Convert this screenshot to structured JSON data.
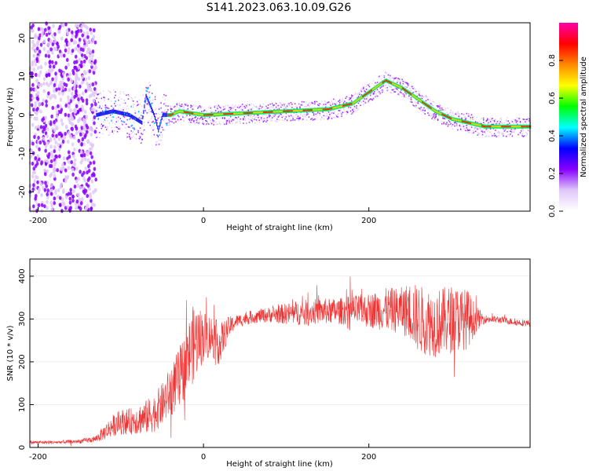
{
  "chart_data": [
    {
      "type": "heatmap",
      "title": "S141.2023.063.10.09.G26",
      "xlabel": "Height of straight line (km)",
      "ylabel": "Frequency (Hz)",
      "xlim": [
        -210,
        395
      ],
      "ylim": [
        -25,
        24
      ],
      "xticks": [
        -200,
        0,
        200
      ],
      "yticks": [
        -20,
        -10,
        0,
        10,
        20
      ],
      "colorbar": {
        "label": "Normalized spectral amplitude",
        "range": [
          0,
          1
        ],
        "ticks": [
          0.0,
          0.2,
          0.4,
          0.6,
          0.8
        ],
        "colors": [
          "#ffffff",
          "#e0c8f8",
          "#8800ff",
          "#0000ff",
          "#00ffff",
          "#00ff00",
          "#ffff00",
          "#ff8800",
          "#ff0000",
          "#ff00aa"
        ]
      },
      "ridge": {
        "x": [
          -130,
          -110,
          -90,
          -75,
          -70,
          -60,
          -55,
          -50,
          -40,
          -30,
          0,
          50,
          100,
          150,
          180,
          200,
          220,
          240,
          260,
          280,
          300,
          320,
          340,
          360,
          395
        ],
        "y": [
          0,
          1,
          0,
          -2,
          5,
          0,
          -4,
          0,
          0,
          1,
          0,
          0.5,
          1,
          1.5,
          3,
          6,
          9,
          7,
          4,
          1,
          -1,
          -2,
          -3,
          -3,
          -3
        ]
      },
      "noise_region": [
        -210,
        -130
      ]
    },
    {
      "type": "line",
      "xlabel": "Height of straight line (km)",
      "ylabel": "SNR (10 * v/v)",
      "xlim": [
        -210,
        395
      ],
      "ylim": [
        0,
        440
      ],
      "xticks": [
        -200,
        0,
        200
      ],
      "yticks": [
        0,
        100,
        200,
        300,
        400
      ],
      "line_color": "#ee3333",
      "series": [
        {
          "x": [
            -210,
            -180,
            -150,
            -130,
            -120,
            -110,
            -100,
            -90,
            -80,
            -70,
            -60,
            -50,
            -40,
            -30,
            -20,
            -15,
            -10,
            0,
            10,
            20,
            30,
            40,
            60,
            80,
            100,
            120,
            140,
            160,
            180,
            200,
            220,
            240,
            250,
            260,
            280,
            300,
            320,
            330,
            340,
            360,
            380,
            395
          ],
          "y": [
            12,
            12,
            14,
            20,
            35,
            50,
            60,
            60,
            65,
            70,
            80,
            100,
            130,
            160,
            200,
            230,
            250,
            260,
            260,
            240,
            280,
            295,
            305,
            310,
            312,
            315,
            318,
            318,
            320,
            320,
            322,
            320,
            318,
            300,
            290,
            300,
            300,
            300,
            300,
            298,
            292,
            290
          ],
          "noise": [
            4,
            4,
            5,
            8,
            18,
            25,
            30,
            30,
            35,
            40,
            45,
            50,
            60,
            70,
            80,
            90,
            90,
            60,
            50,
            50,
            25,
            15,
            15,
            18,
            25,
            30,
            30,
            30,
            35,
            40,
            50,
            55,
            70,
            80,
            80,
            80,
            70,
            30,
            10,
            8,
            8,
            8
          ]
        }
      ]
    }
  ]
}
